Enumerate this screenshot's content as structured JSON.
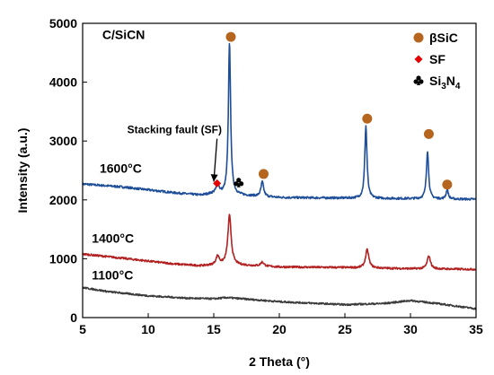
{
  "chart_data": {
    "type": "line",
    "title": "C/SiCN",
    "xlabel": "2 Theta (°)",
    "ylabel": "Intensity (a.u.)",
    "xlim": [
      5,
      35
    ],
    "ylim": [
      0,
      5000
    ],
    "xticks": [
      5,
      10,
      15,
      20,
      25,
      30,
      35
    ],
    "yticks": [
      0,
      1000,
      2000,
      3000,
      4000,
      5000
    ],
    "grid": false,
    "legend_position": "top-right",
    "legend": [
      {
        "label": "βSiC",
        "marker": "circle",
        "color": "#b5651d"
      },
      {
        "label": "SF",
        "marker": "diamond",
        "color": "#e60000"
      },
      {
        "label_main": "Si",
        "sub1": "3",
        "mid": "N",
        "sub2": "4",
        "marker": "club",
        "color": "#000000"
      }
    ],
    "series": [
      {
        "name": "1600°C",
        "color": "#1f4e99",
        "baseline": [
          [
            5,
            2270
          ],
          [
            8,
            2220
          ],
          [
            10,
            2170
          ],
          [
            12,
            2120
          ],
          [
            14,
            2080
          ],
          [
            15,
            2110
          ],
          [
            16,
            2090
          ],
          [
            20,
            2040
          ],
          [
            25,
            2030
          ],
          [
            30,
            2020
          ],
          [
            35,
            2010
          ]
        ],
        "peaks": [
          [
            15.3,
            170,
            0.12
          ],
          [
            16.2,
            2600,
            0.1
          ],
          [
            18.7,
            250,
            0.12
          ],
          [
            26.6,
            1230,
            0.1
          ],
          [
            31.3,
            820,
            0.1
          ],
          [
            32.8,
            160,
            0.1
          ]
        ],
        "noise": 18
      },
      {
        "name": "1400°C",
        "color": "#b22222",
        "baseline": [
          [
            5,
            1080
          ],
          [
            8,
            1010
          ],
          [
            10,
            960
          ],
          [
            12,
            910
          ],
          [
            14,
            880
          ],
          [
            16,
            900
          ],
          [
            20,
            860
          ],
          [
            25,
            850
          ],
          [
            30,
            830
          ],
          [
            35,
            820
          ]
        ],
        "peaks": [
          [
            15.3,
            150,
            0.15
          ],
          [
            16.2,
            840,
            0.15
          ],
          [
            18.7,
            70,
            0.15
          ],
          [
            26.7,
            310,
            0.15
          ],
          [
            31.4,
            220,
            0.15
          ]
        ],
        "noise": 16
      },
      {
        "name": "1100°C",
        "color": "#3c3c3c",
        "baseline": [
          [
            5,
            510
          ],
          [
            7,
            440
          ],
          [
            10,
            370
          ],
          [
            13,
            330
          ],
          [
            15,
            320
          ],
          [
            16,
            340
          ],
          [
            20,
            270
          ],
          [
            25,
            220
          ],
          [
            28,
            240
          ],
          [
            30,
            290
          ],
          [
            32,
            240
          ],
          [
            35,
            150
          ]
        ],
        "peaks": [],
        "noise": 14
      }
    ],
    "markers": [
      {
        "type": "circle",
        "x": 16.3,
        "y": 4770,
        "color": "#b5651d"
      },
      {
        "type": "circle",
        "x": 18.8,
        "y": 2440,
        "color": "#b5651d"
      },
      {
        "type": "circle",
        "x": 26.7,
        "y": 3380,
        "color": "#b5651d"
      },
      {
        "type": "circle",
        "x": 31.4,
        "y": 3120,
        "color": "#b5651d"
      },
      {
        "type": "circle",
        "x": 32.8,
        "y": 2260,
        "color": "#b5651d"
      },
      {
        "type": "diamond",
        "x": 15.25,
        "y": 2280,
        "color": "#e60000"
      },
      {
        "type": "club",
        "x": 16.9,
        "y": 2290,
        "color": "#000000"
      }
    ],
    "annotations": [
      {
        "text": "Stacking fault (SF)",
        "x": 8.4,
        "y": 3130,
        "arrow_to": [
          15.0,
          2310
        ]
      },
      {
        "text": "1600°C",
        "x": 6.3,
        "y": 2460
      },
      {
        "text": "1400°C",
        "x": 5.7,
        "y": 1270
      },
      {
        "text": "1100°C",
        "x": 5.7,
        "y": 650
      },
      {
        "text": "C/SiCN",
        "x": 6.5,
        "y": 4730
      }
    ]
  }
}
